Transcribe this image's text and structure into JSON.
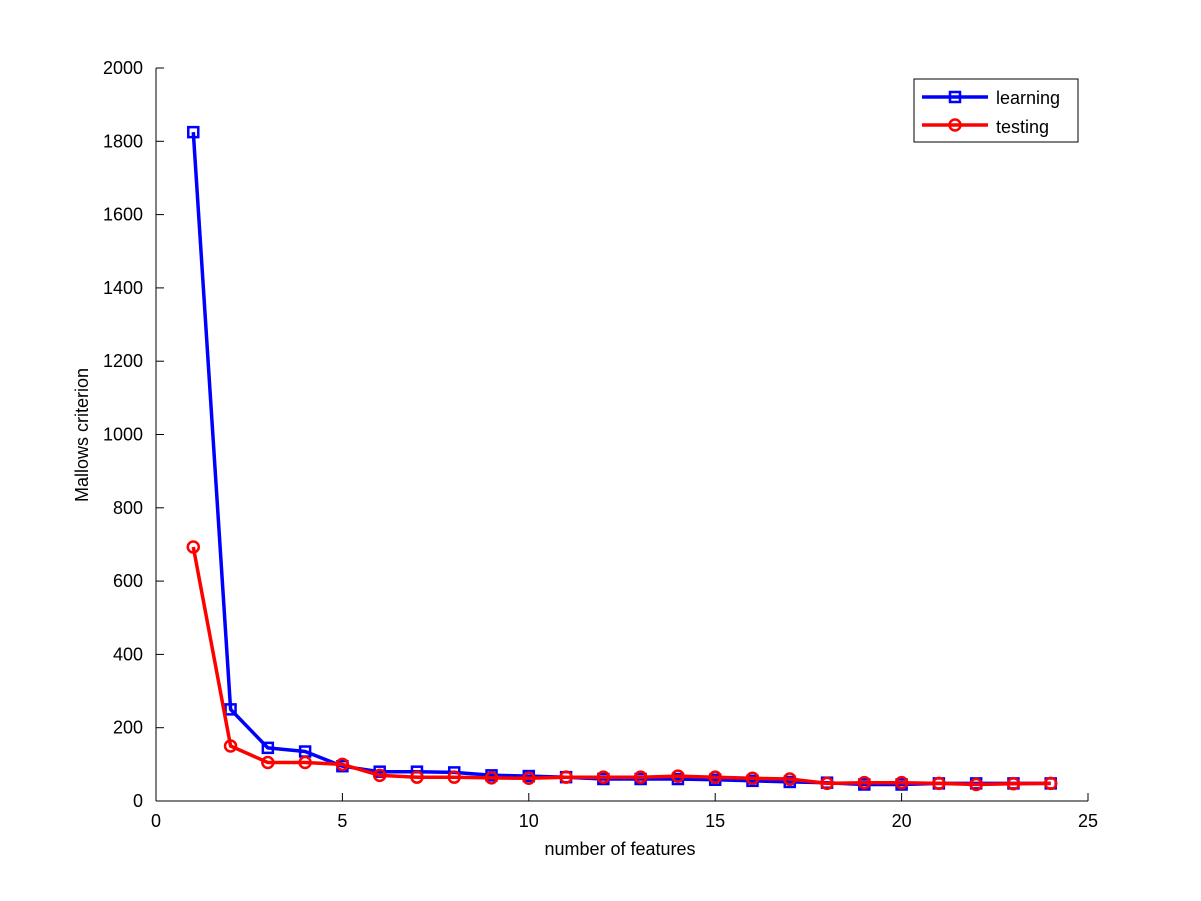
{
  "chart_data": {
    "type": "line",
    "title": "",
    "xlabel": "number of features",
    "ylabel": "Mallows criterion",
    "xlim": [
      0,
      25
    ],
    "ylim": [
      0,
      2000
    ],
    "xticks": [
      0,
      5,
      10,
      15,
      20,
      25
    ],
    "yticks": [
      0,
      200,
      400,
      600,
      800,
      1000,
      1200,
      1400,
      1600,
      1800,
      2000
    ],
    "grid": false,
    "legend_position": "top-right",
    "x": [
      1,
      2,
      3,
      4,
      5,
      6,
      7,
      8,
      9,
      10,
      11,
      12,
      13,
      14,
      15,
      16,
      17,
      18,
      19,
      20,
      21,
      22,
      23,
      24
    ],
    "series": [
      {
        "name": "learning",
        "color": "#0000ff",
        "marker": "square",
        "values": [
          1825,
          250,
          145,
          135,
          95,
          80,
          80,
          78,
          70,
          68,
          65,
          60,
          60,
          60,
          58,
          55,
          52,
          50,
          45,
          45,
          48,
          48,
          48,
          48
        ]
      },
      {
        "name": "testing",
        "color": "#ff0000",
        "marker": "circle",
        "values": [
          693,
          150,
          105,
          105,
          100,
          70,
          65,
          65,
          63,
          62,
          65,
          65,
          65,
          68,
          65,
          62,
          60,
          48,
          50,
          50,
          48,
          45,
          47,
          48
        ]
      }
    ]
  }
}
